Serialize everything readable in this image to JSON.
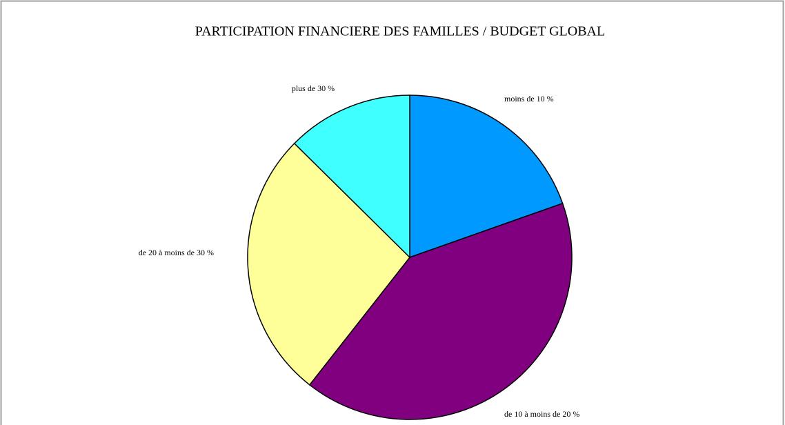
{
  "chart_data": {
    "type": "pie",
    "title": "PARTICIPATION FINANCIERE DES FAMILLES / BUDGET GLOBAL",
    "categories": [
      "moins de 10 %",
      "de 10 à moins de 20 %",
      "de 20 à moins de 30 %",
      "plus de 30 %"
    ],
    "values": [
      19.6,
      41,
      26.8,
      12.6
    ],
    "colors": [
      "#0099ff",
      "#800080",
      "#ffff99",
      "#40ffff"
    ]
  }
}
